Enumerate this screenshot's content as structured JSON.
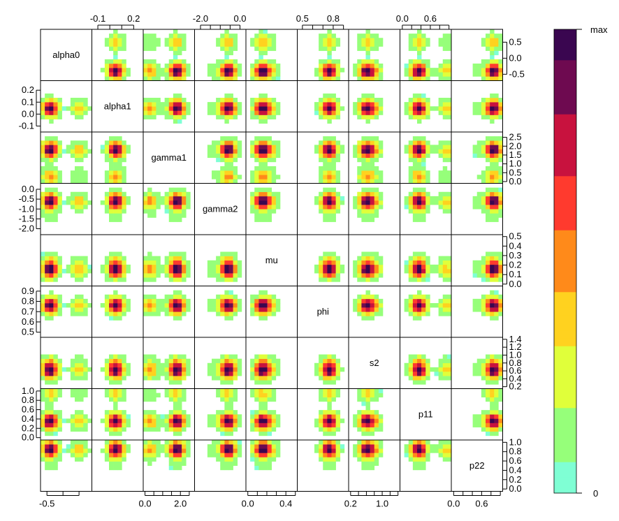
{
  "chart_data": {
    "type": "heatmap",
    "variables": [
      "alpha0",
      "alpha1",
      "gamma1",
      "gamma2",
      "mu",
      "phi",
      "s2",
      "p11",
      "p22"
    ],
    "colorbar": {
      "max_label": "max",
      "min_label": "0",
      "colors": [
        "#7FFFD4",
        "#96FF7A",
        "#E0FF3A",
        "#FFD21F",
        "#FF8A1A",
        "#FF3A2E",
        "#C8123E",
        "#6E0A50",
        "#3A0650"
      ]
    },
    "axes": {
      "alpha0": {
        "range": [
          -0.7,
          0.9
        ],
        "ticks": [
          {
            "v": -0.5,
            "label": "-0.5"
          },
          {
            "v": 0.0,
            "label": "0.0"
          },
          {
            "v": 0.5,
            "label": "0.5"
          }
        ],
        "modes": [
          [
            -0.4,
            0.4
          ],
          [
            0.5,
            0.15
          ]
        ]
      },
      "alpha1": {
        "range": [
          -0.15,
          0.28
        ],
        "ticks": [
          {
            "v": -0.1,
            "label": "-0.1"
          },
          {
            "v": 0.0,
            "label": "0.0"
          },
          {
            "v": 0.1,
            "label": "0.1"
          },
          {
            "v": 0.2,
            "label": "0.2"
          }
        ],
        "modes": [
          [
            0.05,
            1.0
          ]
        ]
      },
      "gamma1": {
        "range": [
          -0.1,
          2.8
        ],
        "ticks": [
          {
            "v": 0.0,
            "label": "0.0"
          },
          {
            "v": 0.5,
            "label": "0.5"
          },
          {
            "v": 1.0,
            "label": "1.0"
          },
          {
            "v": 1.5,
            "label": "1.5"
          },
          {
            "v": 2.0,
            "label": "2.0"
          },
          {
            "v": 2.5,
            "label": "2.5"
          }
        ],
        "modes": [
          [
            1.8,
            0.75
          ],
          [
            0.3,
            0.35
          ]
        ]
      },
      "gamma2": {
        "range": [
          -2.3,
          0.3
        ],
        "ticks": [
          {
            "v": -2.0,
            "label": "-2.0"
          },
          {
            "v": -1.5,
            "label": "-1.5"
          },
          {
            "v": -1.0,
            "label": "-1.0"
          },
          {
            "v": -0.5,
            "label": "-0.5"
          },
          {
            "v": 0.0,
            "label": "0.0"
          }
        ],
        "modes": [
          [
            -0.6,
            1.0
          ],
          [
            -1.4,
            0.12
          ]
        ]
      },
      "mu": {
        "range": [
          -0.02,
          0.52
        ],
        "ticks": [
          {
            "v": 0.0,
            "label": "0.0"
          },
          {
            "v": 0.1,
            "label": "0.1"
          },
          {
            "v": 0.2,
            "label": "0.2"
          },
          {
            "v": 0.3,
            "label": "0.3"
          },
          {
            "v": 0.4,
            "label": "0.4"
          },
          {
            "v": 0.5,
            "label": "0.5"
          }
        ],
        "modes": [
          [
            0.15,
            1.0
          ],
          [
            0.25,
            0.25
          ]
        ]
      },
      "phi": {
        "range": [
          0.45,
          0.95
        ],
        "ticks": [
          {
            "v": 0.5,
            "label": "0.5"
          },
          {
            "v": 0.6,
            "label": "0.6"
          },
          {
            "v": 0.7,
            "label": "0.7"
          },
          {
            "v": 0.8,
            "label": "0.8"
          },
          {
            "v": 0.9,
            "label": "0.9"
          }
        ],
        "modes": [
          [
            0.76,
            1.0
          ]
        ]
      },
      "s2": {
        "range": [
          0.15,
          1.45
        ],
        "ticks": [
          {
            "v": 0.2,
            "label": "0.2"
          },
          {
            "v": 0.4,
            "label": "0.4"
          },
          {
            "v": 0.6,
            "label": "0.6"
          },
          {
            "v": 0.8,
            "label": "0.8"
          },
          {
            "v": 1.0,
            "label": "1.0"
          },
          {
            "v": 1.2,
            "label": "1.2"
          },
          {
            "v": 1.4,
            "label": "1.4"
          }
        ],
        "modes": [
          [
            0.6,
            1.0
          ],
          [
            0.8,
            0.35
          ]
        ]
      },
      "p11": {
        "range": [
          -0.05,
          1.05
        ],
        "ticks": [
          {
            "v": 0.0,
            "label": "0.0"
          },
          {
            "v": 0.2,
            "label": "0.2"
          },
          {
            "v": 0.4,
            "label": "0.4"
          },
          {
            "v": 0.6,
            "label": "0.6"
          },
          {
            "v": 0.8,
            "label": "0.8"
          },
          {
            "v": 1.0,
            "label": "1.0"
          }
        ],
        "modes": [
          [
            0.35,
            1.0
          ],
          [
            0.95,
            0.35
          ]
        ]
      },
      "p22": {
        "range": [
          -0.05,
          1.05
        ],
        "ticks": [
          {
            "v": 0.0,
            "label": "0.0"
          },
          {
            "v": 0.2,
            "label": "0.2"
          },
          {
            "v": 0.4,
            "label": "0.4"
          },
          {
            "v": 0.6,
            "label": "0.6"
          },
          {
            "v": 0.8,
            "label": "0.8"
          },
          {
            "v": 1.0,
            "label": "1.0"
          }
        ],
        "modes": [
          [
            0.85,
            1.0
          ],
          [
            0.5,
            0.1
          ]
        ]
      }
    },
    "tick_labels": {
      "top": {
        "alpha1": [
          {
            "v": -0.1,
            "label": "-0.1"
          },
          {
            "v": 0.2,
            "label": "0.2"
          }
        ],
        "gamma2": [
          {
            "v": -2.0,
            "label": "-2.0"
          },
          {
            "v": 0.0,
            "label": "0.0"
          }
        ],
        "phi": [
          {
            "v": 0.5,
            "label": "0.5"
          },
          {
            "v": 0.8,
            "label": "0.8"
          }
        ],
        "p11": [
          {
            "v": 0.0,
            "label": "0.0"
          },
          {
            "v": 0.6,
            "label": "0.6"
          }
        ]
      },
      "bottom": {
        "alpha0": [
          {
            "v": -0.5,
            "label": "-0.5"
          }
        ],
        "gamma1": [
          {
            "v": 0.0,
            "label": "0.0"
          },
          {
            "v": 2.0,
            "label": "2.0"
          }
        ],
        "mu": [
          {
            "v": 0.0,
            "label": "0.0"
          },
          {
            "v": 0.4,
            "label": "0.4"
          }
        ],
        "s2": [
          {
            "v": 0.2,
            "label": "0.2"
          },
          {
            "v": 1.0,
            "label": "1.0"
          }
        ],
        "p22": [
          {
            "v": 0.0,
            "label": "0.0"
          },
          {
            "v": 0.6,
            "label": "0.6"
          }
        ]
      },
      "left": [
        "alpha1",
        "gamma2",
        "phi",
        "p11"
      ],
      "right": [
        "alpha0",
        "gamma1",
        "mu",
        "s2",
        "p22"
      ]
    }
  }
}
